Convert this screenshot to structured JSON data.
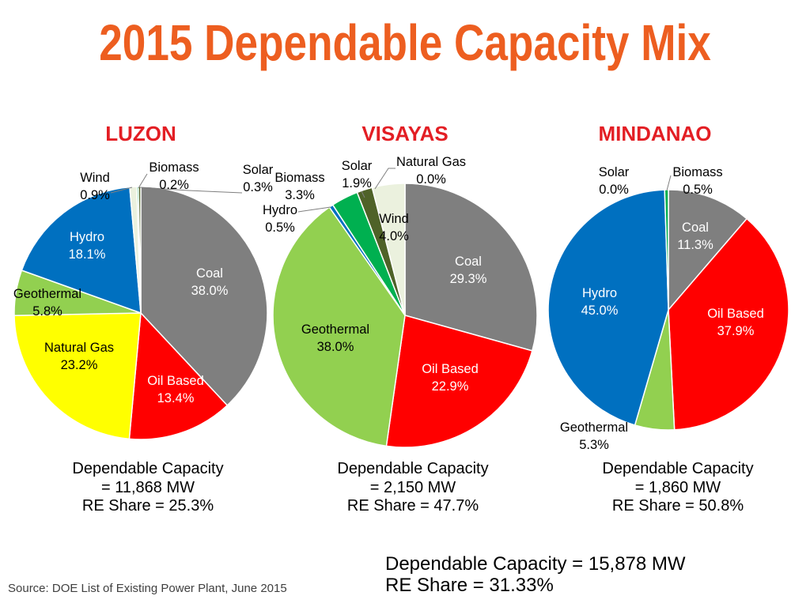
{
  "title": "2015 Dependable Capacity Mix",
  "colors": {
    "title": "#ed5e20",
    "region_title": "#e31e24",
    "leader_line": "#7f7f7f"
  },
  "slice_colors": {
    "Coal": "#7f7f7f",
    "Oil Based": "#ff0000",
    "Natural Gas": "#ffff00",
    "Geothermal": "#92d050",
    "Hydro": "#0070c0",
    "Wind": "#ebf1de",
    "Biomass": "#00b050",
    "Solar": "#4f6228"
  },
  "chart_data": [
    {
      "type": "pie",
      "title": "LUZON",
      "slices": [
        {
          "label": "Coal",
          "value": 38.0,
          "pct": "38.0%"
        },
        {
          "label": "Oil Based",
          "value": 13.4,
          "pct": "13.4%"
        },
        {
          "label": "Natural Gas",
          "value": 23.2,
          "pct": "23.2%"
        },
        {
          "label": "Geothermal",
          "value": 5.8,
          "pct": "5.8%"
        },
        {
          "label": "Hydro",
          "value": 18.1,
          "pct": "18.1%"
        },
        {
          "label": "Wind",
          "value": 0.9,
          "pct": "0.9%"
        },
        {
          "label": "Biomass",
          "value": 0.2,
          "pct": "0.2%"
        },
        {
          "label": "Solar",
          "value": 0.3,
          "pct": "0.3%"
        }
      ],
      "capacity_label": "Dependable Capacity",
      "capacity_value": "= 11,868 MW",
      "re_share": "RE Share = 25.3%"
    },
    {
      "type": "pie",
      "title": "VISAYAS",
      "slices": [
        {
          "label": "Coal",
          "value": 29.3,
          "pct": "29.3%"
        },
        {
          "label": "Oil Based",
          "value": 22.9,
          "pct": "22.9%"
        },
        {
          "label": "Geothermal",
          "value": 38.0,
          "pct": "38.0%"
        },
        {
          "label": "Hydro",
          "value": 0.5,
          "pct": "0.5%"
        },
        {
          "label": "Biomass",
          "value": 3.3,
          "pct": "3.3%"
        },
        {
          "label": "Solar",
          "value": 1.9,
          "pct": "1.9%"
        },
        {
          "label": "Natural Gas",
          "value": 0.0,
          "pct": "0.0%"
        },
        {
          "label": "Wind",
          "value": 4.0,
          "pct": "4.0%"
        }
      ],
      "capacity_label": "Dependable Capacity",
      "capacity_value": "= 2,150 MW",
      "re_share": "RE Share = 47.7%"
    },
    {
      "type": "pie",
      "title": "MINDANAO",
      "slices": [
        {
          "label": "Coal",
          "value": 11.3,
          "pct": "11.3%"
        },
        {
          "label": "Oil Based",
          "value": 37.9,
          "pct": "37.9%"
        },
        {
          "label": "Geothermal",
          "value": 5.3,
          "pct": "5.3%"
        },
        {
          "label": "Hydro",
          "value": 45.0,
          "pct": "45.0%"
        },
        {
          "label": "Solar",
          "value": 0.0,
          "pct": "0.0%"
        },
        {
          "label": "Biomass",
          "value": 0.5,
          "pct": "0.5%"
        }
      ],
      "capacity_label": "Dependable Capacity",
      "capacity_value": "= 1,860 MW",
      "re_share": "RE Share = 50.8%"
    }
  ],
  "totals": {
    "capacity": "Dependable Capacity = 15,878 MW",
    "re_share": "RE Share = 31.33%"
  },
  "source": "Source: DOE List of Existing Power Plant, June 2015"
}
